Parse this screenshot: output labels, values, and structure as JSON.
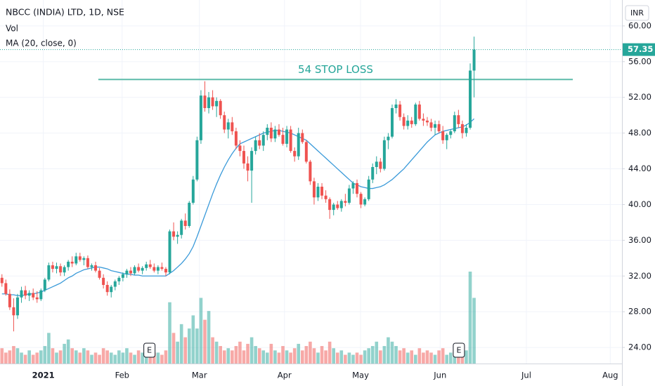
{
  "chart_data": {
    "type": "candlestick",
    "title": "NBCC (INDIA) LTD, 1D, NSE",
    "legend": [
      "Vol",
      "MA (20, close, 0)"
    ],
    "currency": "INR",
    "up_color": "#26a69a",
    "down_color": "#ef5350",
    "ma_color": "#3a9ad9",
    "annotation_color": "#5dbbaa",
    "ylim": [
      22.2,
      62.9
    ],
    "yticks": [
      {
        "value": 24,
        "label": "24.00"
      },
      {
        "value": 28,
        "label": "28.00"
      },
      {
        "value": 32,
        "label": "32.00"
      },
      {
        "value": 36,
        "label": "36.00"
      },
      {
        "value": 40,
        "label": "40.00"
      },
      {
        "value": 44,
        "label": "44.00"
      },
      {
        "value": 48,
        "label": "48.00"
      },
      {
        "value": 52,
        "label": "52.00"
      },
      {
        "value": 56,
        "label": "56.00"
      },
      {
        "value": 60,
        "label": "60.00"
      }
    ],
    "xlim": [
      -0.5,
      158.9
    ],
    "xticks": [
      {
        "value": 10.6,
        "label": "2021"
      },
      {
        "value": 30.8,
        "label": "Feb"
      },
      {
        "value": 50.6,
        "label": "Mar"
      },
      {
        "value": 72.4,
        "label": "Apr"
      },
      {
        "value": 91.9,
        "label": "May"
      },
      {
        "value": 112.3,
        "label": "Jun"
      },
      {
        "value": 134.4,
        "label": "Jul"
      },
      {
        "value": 155.9,
        "label": "Aug"
      }
    ],
    "ohlc": [
      [
        31.8,
        32.2,
        30.8,
        31.2
      ],
      [
        31.2,
        31.6,
        29.8,
        30.0
      ],
      [
        30.0,
        30.5,
        28.2,
        28.5
      ],
      [
        28.5,
        29.5,
        25.8,
        27.6
      ],
      [
        27.6,
        30.0,
        27.2,
        29.6
      ],
      [
        29.6,
        30.8,
        29.0,
        30.4
      ],
      [
        30.4,
        30.9,
        29.4,
        29.8
      ],
      [
        29.8,
        30.4,
        29.2,
        30.1
      ],
      [
        30.1,
        30.6,
        29.3,
        29.6
      ],
      [
        29.6,
        30.3,
        29.0,
        29.4
      ],
      [
        29.4,
        30.6,
        29.2,
        30.4
      ],
      [
        30.4,
        31.8,
        30.2,
        31.6
      ],
      [
        31.6,
        33.5,
        31.4,
        33.2
      ],
      [
        33.2,
        33.6,
        32.4,
        32.8
      ],
      [
        32.8,
        33.5,
        32.3,
        33.1
      ],
      [
        33.1,
        33.4,
        32.0,
        32.4
      ],
      [
        32.4,
        33.2,
        32.0,
        33.0
      ],
      [
        33.0,
        33.8,
        32.6,
        33.6
      ],
      [
        33.6,
        34.2,
        33.0,
        33.4
      ],
      [
        33.4,
        34.6,
        33.2,
        34.2
      ],
      [
        34.2,
        34.6,
        33.6,
        33.8
      ],
      [
        33.8,
        34.2,
        33.2,
        34.0
      ],
      [
        34.0,
        34.3,
        32.8,
        33.0
      ],
      [
        33.0,
        33.4,
        32.6,
        33.2
      ],
      [
        33.2,
        33.6,
        32.4,
        32.6
      ],
      [
        32.6,
        32.9,
        31.6,
        31.8
      ],
      [
        31.8,
        32.2,
        30.6,
        31.0
      ],
      [
        31.0,
        31.4,
        29.8,
        30.2
      ],
      [
        30.2,
        31.0,
        29.6,
        30.8
      ],
      [
        30.8,
        31.6,
        30.4,
        31.4
      ],
      [
        31.4,
        32.0,
        31.0,
        31.8
      ],
      [
        31.8,
        32.4,
        31.4,
        32.2
      ],
      [
        32.2,
        32.8,
        31.8,
        32.6
      ],
      [
        32.6,
        33.0,
        32.0,
        32.3
      ],
      [
        32.3,
        33.2,
        32.1,
        33.0
      ],
      [
        33.0,
        33.4,
        32.4,
        32.6
      ],
      [
        32.6,
        33.1,
        32.2,
        32.9
      ],
      [
        32.9,
        33.6,
        32.6,
        33.3
      ],
      [
        33.3,
        33.8,
        32.8,
        33.0
      ],
      [
        33.0,
        33.4,
        32.4,
        32.6
      ],
      [
        32.6,
        33.2,
        32.2,
        33.0
      ],
      [
        33.0,
        33.5,
        32.6,
        32.8
      ],
      [
        32.8,
        33.0,
        32.0,
        32.4
      ],
      [
        32.4,
        37.2,
        32.2,
        37.0
      ],
      [
        37.0,
        38.0,
        36.0,
        36.4
      ],
      [
        36.4,
        37.0,
        35.6,
        36.6
      ],
      [
        36.6,
        38.4,
        36.2,
        38.2
      ],
      [
        38.2,
        39.0,
        37.2,
        37.6
      ],
      [
        37.6,
        40.4,
        37.4,
        40.2
      ],
      [
        40.2,
        43.2,
        40.0,
        42.8
      ],
      [
        42.8,
        47.6,
        42.6,
        47.2
      ],
      [
        47.2,
        52.8,
        46.8,
        52.2
      ],
      [
        52.2,
        53.8,
        50.4,
        50.8
      ],
      [
        50.8,
        52.6,
        50.2,
        52.0
      ],
      [
        52.0,
        52.8,
        50.6,
        51.0
      ],
      [
        51.0,
        52.0,
        49.8,
        51.6
      ],
      [
        51.6,
        51.8,
        49.6,
        50.0
      ],
      [
        50.0,
        50.4,
        48.0,
        48.4
      ],
      [
        48.4,
        49.6,
        47.4,
        49.2
      ],
      [
        49.2,
        49.8,
        47.8,
        48.2
      ],
      [
        48.2,
        48.6,
        46.2,
        46.6
      ],
      [
        46.6,
        47.2,
        45.4,
        46.0
      ],
      [
        46.0,
        46.6,
        44.0,
        44.6
      ],
      [
        44.6,
        45.4,
        42.6,
        43.8
      ],
      [
        43.8,
        46.4,
        40.2,
        46.0
      ],
      [
        46.0,
        47.6,
        45.6,
        47.2
      ],
      [
        47.2,
        48.0,
        46.2,
        46.6
      ],
      [
        46.6,
        48.2,
        46.0,
        47.8
      ],
      [
        47.8,
        49.0,
        47.2,
        48.6
      ],
      [
        48.6,
        49.2,
        47.0,
        47.4
      ],
      [
        47.4,
        48.8,
        47.0,
        48.4
      ],
      [
        48.4,
        49.0,
        47.6,
        47.8
      ],
      [
        47.8,
        48.6,
        46.6,
        46.8
      ],
      [
        46.8,
        48.8,
        46.4,
        48.4
      ],
      [
        48.4,
        48.8,
        45.8,
        46.0
      ],
      [
        46.0,
        46.4,
        44.8,
        45.4
      ],
      [
        45.4,
        48.6,
        45.0,
        48.0
      ],
      [
        48.0,
        48.4,
        46.8,
        47.0
      ],
      [
        47.0,
        47.2,
        44.6,
        44.8
      ],
      [
        44.8,
        45.0,
        42.2,
        42.6
      ],
      [
        42.6,
        43.0,
        40.0,
        40.8
      ],
      [
        40.8,
        42.4,
        40.4,
        42.0
      ],
      [
        42.0,
        42.4,
        40.6,
        41.0
      ],
      [
        41.0,
        41.6,
        40.2,
        40.6
      ],
      [
        40.6,
        40.8,
        38.4,
        39.4
      ],
      [
        39.4,
        40.2,
        38.8,
        40.0
      ],
      [
        40.0,
        40.4,
        39.4,
        39.6
      ],
      [
        39.6,
        40.6,
        39.2,
        40.4
      ],
      [
        40.4,
        41.2,
        39.8,
        40.2
      ],
      [
        40.2,
        42.2,
        40.0,
        41.8
      ],
      [
        41.8,
        42.6,
        41.2,
        42.4
      ],
      [
        42.4,
        42.8,
        40.8,
        41.2
      ],
      [
        41.2,
        41.4,
        39.6,
        40.0
      ],
      [
        40.0,
        40.8,
        39.8,
        40.6
      ],
      [
        40.6,
        43.2,
        40.4,
        42.8
      ],
      [
        42.8,
        44.6,
        42.4,
        44.2
      ],
      [
        44.2,
        45.4,
        43.4,
        44.8
      ],
      [
        44.8,
        45.2,
        43.6,
        44.0
      ],
      [
        44.0,
        47.6,
        43.8,
        47.2
      ],
      [
        47.2,
        48.0,
        46.2,
        47.6
      ],
      [
        47.6,
        51.2,
        47.4,
        50.8
      ],
      [
        50.8,
        51.8,
        50.2,
        51.2
      ],
      [
        51.2,
        51.6,
        49.4,
        49.8
      ],
      [
        49.8,
        50.2,
        48.4,
        48.8
      ],
      [
        48.8,
        50.0,
        48.4,
        49.4
      ],
      [
        49.4,
        49.8,
        48.6,
        49.0
      ],
      [
        49.0,
        51.4,
        48.8,
        51.2
      ],
      [
        51.2,
        51.6,
        49.4,
        49.6
      ],
      [
        49.6,
        50.2,
        48.8,
        49.4
      ],
      [
        49.4,
        49.8,
        48.8,
        49.2
      ],
      [
        49.2,
        49.6,
        48.2,
        48.6
      ],
      [
        48.6,
        49.4,
        47.8,
        49.0
      ],
      [
        49.0,
        49.4,
        48.0,
        48.2
      ],
      [
        48.2,
        48.8,
        46.8,
        47.2
      ],
      [
        47.2,
        48.0,
        46.2,
        47.8
      ],
      [
        47.8,
        48.4,
        47.4,
        48.2
      ],
      [
        48.2,
        50.4,
        48.0,
        50.0
      ],
      [
        50.0,
        50.6,
        48.6,
        49.0
      ],
      [
        49.0,
        49.4,
        47.4,
        48.0
      ],
      [
        48.0,
        49.0,
        47.6,
        48.6
      ],
      [
        48.6,
        55.8,
        48.4,
        55.0
      ],
      [
        55.0,
        58.8,
        52.0,
        57.35
      ]
    ],
    "volume": [
      7,
      5,
      6,
      8,
      7,
      5,
      4,
      6,
      4,
      5,
      6,
      8,
      14,
      7,
      5,
      6,
      9,
      11,
      7,
      6,
      5,
      7,
      6,
      4,
      5,
      4,
      7,
      6,
      5,
      4,
      6,
      5,
      7,
      5,
      4,
      6,
      5,
      7,
      4,
      5,
      5,
      4,
      6,
      28,
      14,
      10,
      18,
      12,
      16,
      22,
      16,
      30,
      20,
      24,
      12,
      10,
      8,
      6,
      7,
      6,
      8,
      10,
      6,
      9,
      12,
      8,
      7,
      6,
      5,
      9,
      6,
      5,
      8,
      6,
      5,
      7,
      9,
      6,
      8,
      10,
      7,
      5,
      8,
      6,
      10,
      7,
      5,
      6,
      4,
      5,
      4,
      5,
      4,
      6,
      7,
      8,
      10,
      6,
      8,
      12,
      10,
      8,
      6,
      7,
      5,
      6,
      4,
      7,
      5,
      6,
      5,
      4,
      6,
      7,
      4,
      5,
      6,
      5,
      5,
      6,
      42,
      30
    ],
    "ma": [
      30.0,
      30.0,
      29.9,
      29.9,
      29.8,
      29.8,
      29.9,
      30.0,
      30.0,
      30.1,
      30.2,
      30.4,
      30.6,
      30.8,
      31.0,
      31.2,
      31.5,
      31.8,
      32.0,
      32.3,
      32.5,
      32.7,
      32.8,
      32.9,
      33.0,
      33.0,
      32.9,
      32.8,
      32.6,
      32.5,
      32.4,
      32.3,
      32.2,
      32.2,
      32.1,
      32.1,
      32.0,
      32.0,
      32.0,
      32.0,
      32.0,
      32.0,
      32.0,
      32.3,
      32.6,
      33.0,
      33.4,
      33.9,
      34.5,
      35.3,
      36.4,
      37.6,
      38.8,
      40.0,
      41.2,
      42.3,
      43.3,
      44.2,
      45.0,
      45.7,
      46.3,
      46.8,
      47.0,
      47.2,
      47.4,
      47.6,
      47.8,
      48.0,
      48.1,
      48.2,
      48.3,
      48.3,
      48.2,
      48.1,
      48.0,
      47.8,
      47.6,
      47.4,
      47.2,
      46.8,
      46.4,
      46.0,
      45.6,
      45.2,
      44.8,
      44.4,
      44.0,
      43.6,
      43.2,
      42.8,
      42.4,
      42.2,
      42.0,
      41.9,
      41.8,
      41.8,
      41.9,
      42.0,
      42.2,
      42.5,
      42.8,
      43.2,
      43.6,
      44.0,
      44.5,
      45.0,
      45.5,
      46.0,
      46.5,
      47.0,
      47.4,
      47.8,
      48.0,
      48.2,
      48.3,
      48.4,
      48.5,
      48.6,
      48.7,
      48.9,
      49.2,
      49.6
    ],
    "annotations": [
      {
        "text": "54 STOP LOSS",
        "value": 54,
        "x": [
          24.7,
          146.3
        ]
      }
    ],
    "events": [
      {
        "label": "E",
        "x": 37.8
      },
      {
        "label": "E",
        "x": 117.1
      }
    ]
  }
}
